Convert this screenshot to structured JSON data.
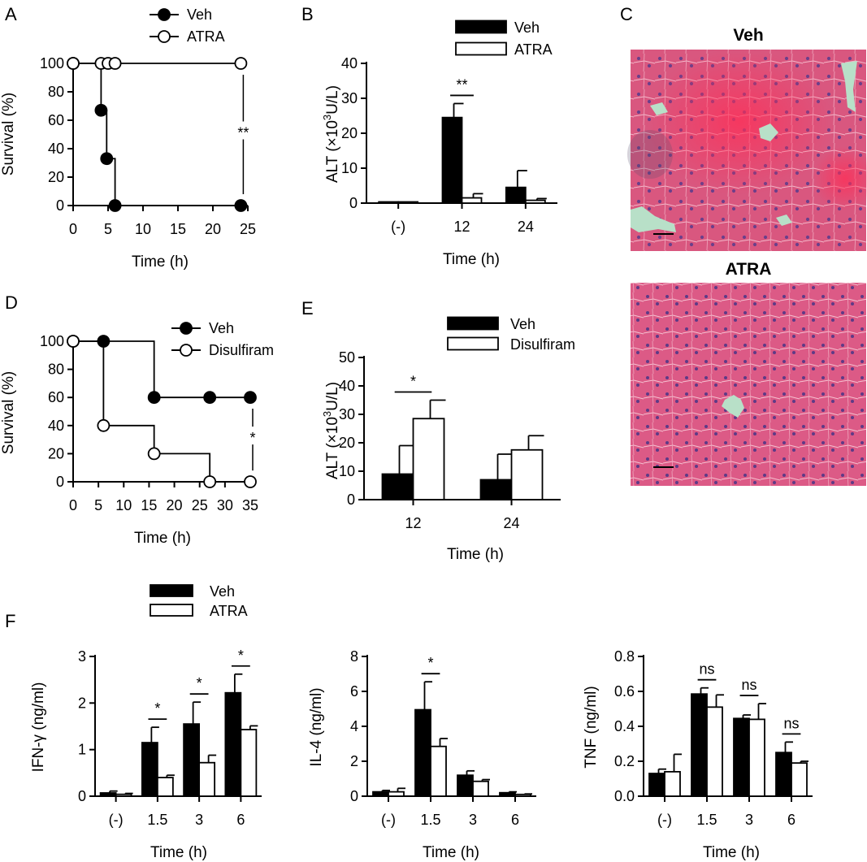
{
  "panels": {
    "A": "A",
    "B": "B",
    "C": "C",
    "D": "D",
    "E": "E",
    "F": "F"
  },
  "micrographs": {
    "top_title": "Veh",
    "bottom_title": "ATRA",
    "tissue_color": "#d2547c",
    "vessel_color": "#b8e0c8"
  },
  "colors": {
    "veh": "#000000",
    "treatment": "#ffffff",
    "axis": "#000000"
  },
  "chart_data": [
    {
      "id": "A",
      "type": "line",
      "step": true,
      "xlabel": "Time (h)",
      "ylabel": "Survival (%)",
      "xlim": [
        0,
        25
      ],
      "ylim": [
        0,
        100
      ],
      "xticks": [
        0,
        5,
        10,
        15,
        20,
        25
      ],
      "yticks": [
        0,
        20,
        40,
        60,
        80,
        100
      ],
      "legend_position": "top",
      "series": [
        {
          "name": "Veh",
          "marker": "filled",
          "x": [
            0,
            4,
            4.8,
            6,
            24
          ],
          "y": [
            100,
            67,
            33,
            0,
            0
          ],
          "step_x": [
            0,
            4,
            4,
            4.8,
            4.8,
            6,
            6
          ],
          "step_y": [
            100,
            100,
            67,
            67,
            33,
            33,
            0
          ]
        },
        {
          "name": "ATRA",
          "marker": "open",
          "x": [
            0,
            4,
            5,
            6,
            24
          ],
          "y": [
            100,
            100,
            100,
            100,
            100
          ],
          "step_x": [
            0,
            24
          ],
          "step_y": [
            100,
            100
          ]
        }
      ],
      "annotations": [
        {
          "text": "**",
          "x": 24,
          "y_top": 92,
          "y_bottom": 8
        }
      ]
    },
    {
      "id": "B",
      "type": "bar",
      "xlabel": "Time (h)",
      "ylabel": "ALT (×10³U/L)",
      "categories": [
        "(-)",
        "12",
        "24"
      ],
      "ylim": [
        0,
        40
      ],
      "yticks": [
        0,
        10,
        20,
        30,
        40
      ],
      "legend_position": "top",
      "series": [
        {
          "name": "Veh",
          "values": [
            0.1,
            24.5,
            4.5
          ],
          "errors": [
            0,
            4,
            4.8
          ]
        },
        {
          "name": "ATRA",
          "values": [
            0.1,
            1.5,
            0.8
          ],
          "errors": [
            0,
            1.2,
            0.5
          ]
        }
      ],
      "annotations": [
        {
          "text": "**",
          "category": 1
        }
      ]
    },
    {
      "id": "D",
      "type": "line",
      "step": true,
      "xlabel": "Time (h)",
      "ylabel": "Survival (%)",
      "xlim": [
        0,
        35
      ],
      "ylim": [
        0,
        100
      ],
      "xticks": [
        0,
        5,
        10,
        15,
        20,
        25,
        30,
        35
      ],
      "yticks": [
        0,
        20,
        40,
        60,
        80,
        100
      ],
      "legend_position": "top-right",
      "series": [
        {
          "name": "Veh",
          "marker": "filled",
          "x": [
            0,
            6,
            16,
            27,
            35
          ],
          "y": [
            100,
            100,
            60,
            60,
            60
          ],
          "step_x": [
            0,
            16,
            16,
            35
          ],
          "step_y": [
            100,
            100,
            60,
            60
          ]
        },
        {
          "name": "Disulfiram",
          "marker": "open",
          "x": [
            0,
            6,
            16,
            27,
            35
          ],
          "y": [
            100,
            40,
            20,
            0,
            0
          ],
          "step_x": [
            0,
            6,
            6,
            16,
            16,
            27,
            27
          ],
          "step_y": [
            100,
            100,
            40,
            40,
            20,
            20,
            0
          ]
        }
      ],
      "annotations": [
        {
          "text": "*",
          "x": 35,
          "y_top": 52,
          "y_bottom": 8
        }
      ]
    },
    {
      "id": "E",
      "type": "bar",
      "xlabel": "Time (h)",
      "ylabel": "ALT (×10³U/L)",
      "categories": [
        "12",
        "24"
      ],
      "ylim": [
        0,
        50
      ],
      "yticks": [
        0,
        10,
        20,
        30,
        40,
        50
      ],
      "legend_position": "top",
      "series": [
        {
          "name": "Veh",
          "values": [
            9,
            7
          ],
          "errors": [
            10,
            9
          ]
        },
        {
          "name": "Disulfiram",
          "values": [
            28.5,
            17.5
          ],
          "errors": [
            6.5,
            5
          ]
        }
      ],
      "annotations": [
        {
          "text": "*",
          "category": 0
        }
      ]
    },
    {
      "id": "F1",
      "type": "bar",
      "xlabel": "Time (h)",
      "ylabel": "IFN-γ (ng/ml)",
      "categories": [
        "(-)",
        "1.5",
        "3",
        "6"
      ],
      "ylim": [
        0,
        3
      ],
      "yticks": [
        0,
        1,
        2,
        3
      ],
      "legend_position": "top",
      "series": [
        {
          "name": "Veh",
          "values": [
            0.07,
            1.15,
            1.55,
            2.22
          ],
          "errors": [
            0.04,
            0.33,
            0.47,
            0.4
          ]
        },
        {
          "name": "ATRA",
          "values": [
            0.04,
            0.4,
            0.72,
            1.43
          ],
          "errors": [
            0.02,
            0.05,
            0.16,
            0.08
          ]
        }
      ],
      "annotations": [
        {
          "text": "*",
          "category": 1
        },
        {
          "text": "*",
          "category": 2
        },
        {
          "text": "*",
          "category": 3
        }
      ]
    },
    {
      "id": "F2",
      "type": "bar",
      "xlabel": "Time (h)",
      "ylabel": "IL-4 (ng/ml)",
      "categories": [
        "(-)",
        "1.5",
        "3",
        "6"
      ],
      "ylim": [
        0,
        8
      ],
      "yticks": [
        0,
        2,
        4,
        6,
        8
      ],
      "series": [
        {
          "name": "Veh",
          "values": [
            0.25,
            4.95,
            1.2,
            0.2
          ],
          "errors": [
            0.08,
            1.6,
            0.25,
            0.05
          ]
        },
        {
          "name": "ATRA",
          "values": [
            0.25,
            2.85,
            0.85,
            0.1
          ],
          "errors": [
            0.2,
            0.45,
            0.1,
            0.03
          ]
        }
      ],
      "annotations": [
        {
          "text": "*",
          "category": 1
        }
      ]
    },
    {
      "id": "F3",
      "type": "bar",
      "xlabel": "Time (h)",
      "ylabel": "TNF (ng/ml)",
      "categories": [
        "(-)",
        "1.5",
        "3",
        "6"
      ],
      "ylim": [
        0,
        0.8
      ],
      "yticks": [
        0.0,
        0.2,
        0.4,
        0.6,
        0.8
      ],
      "tick_decimals": 1,
      "series": [
        {
          "name": "Veh",
          "values": [
            0.13,
            0.585,
            0.445,
            0.25
          ],
          "errors": [
            0.025,
            0.035,
            0.02,
            0.06
          ]
        },
        {
          "name": "ATRA",
          "values": [
            0.14,
            0.51,
            0.44,
            0.19
          ],
          "errors": [
            0.1,
            0.07,
            0.09,
            0.01
          ]
        }
      ],
      "annotations": [
        {
          "text": "ns",
          "category": 1
        },
        {
          "text": "ns",
          "category": 2
        },
        {
          "text": "ns",
          "category": 3
        }
      ]
    }
  ]
}
